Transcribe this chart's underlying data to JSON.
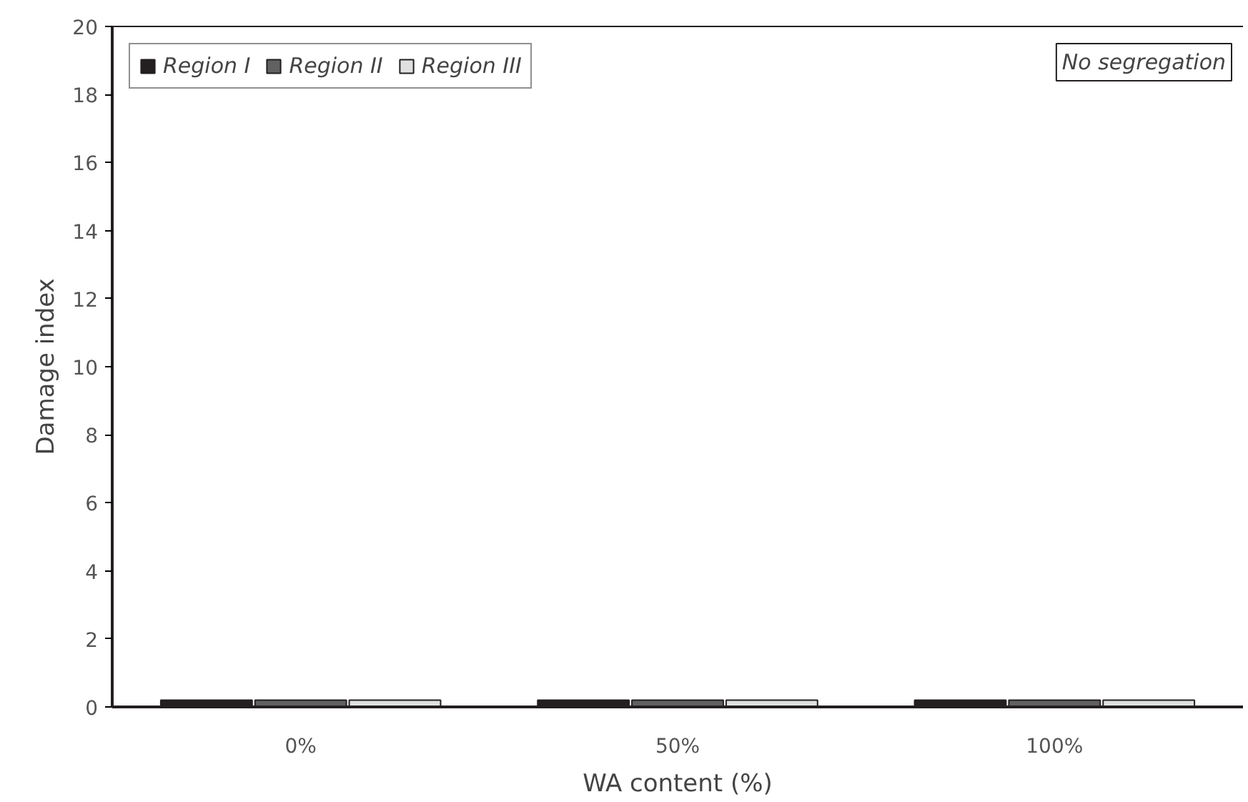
{
  "chart_data": {
    "type": "bar",
    "xlabel": "WA content (%)",
    "ylabel": "Damage index",
    "categories": [
      "0%",
      "50%",
      "100%"
    ],
    "series": [
      {
        "name": "Region I",
        "color": "#231f20",
        "values": [
          0.2,
          0.2,
          0.2
        ]
      },
      {
        "name": "Region II",
        "color": "#616161",
        "values": [
          0.2,
          0.2,
          0.2
        ]
      },
      {
        "name": "Region III",
        "color": "#e0e0e0",
        "values": [
          0.2,
          0.2,
          0.2
        ]
      }
    ],
    "ylim": [
      0,
      20
    ],
    "yticks": [
      0,
      2,
      4,
      6,
      8,
      10,
      12,
      14,
      16,
      18,
      20
    ],
    "annotations": [
      "No segregation"
    ],
    "legend": "top left",
    "grid": false
  }
}
